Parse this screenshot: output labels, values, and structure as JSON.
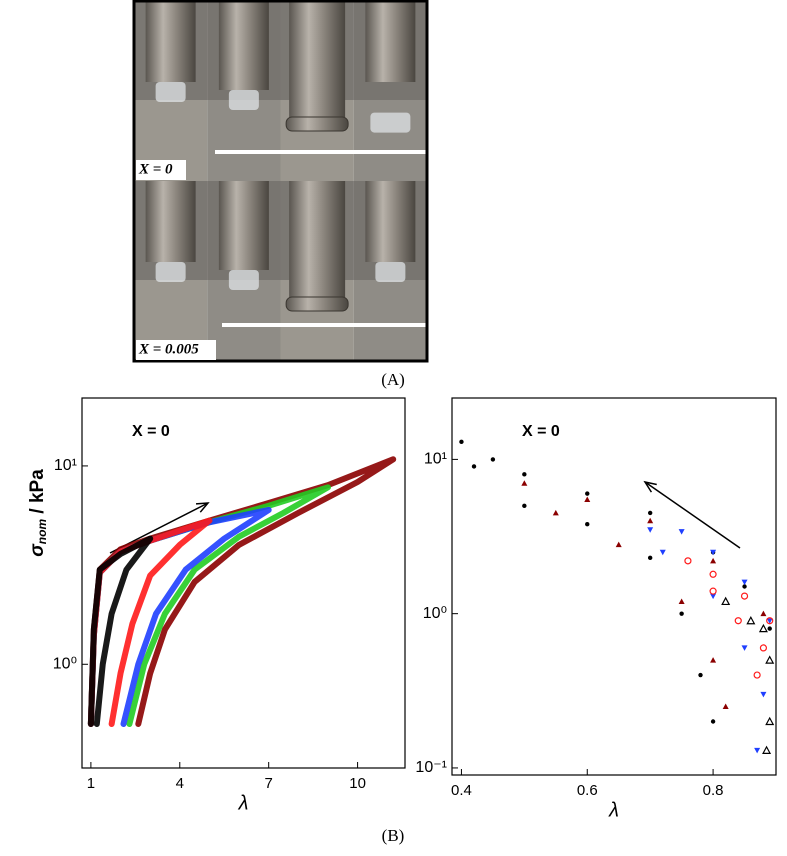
{
  "panel_a": {
    "row_labels": [
      "X = 0",
      "X = 0.005"
    ],
    "caption": "(A)"
  },
  "caption_b": "(B)",
  "chart_data": [
    {
      "type": "line",
      "annotation": "X = 0",
      "y_label": {
        "symbol": "σ",
        "subscript": "nom",
        "unit": " / kPa"
      },
      "x_label": "λ",
      "log_y": true,
      "xlim": [
        0.7,
        11.6
      ],
      "ylim": [
        0.3,
        22
      ],
      "xticks": [
        1,
        4,
        7,
        10
      ],
      "yticks": [
        {
          "value": 1,
          "label": "10⁰"
        },
        {
          "value": 10,
          "label": "10¹"
        }
      ],
      "series": [
        {
          "color": "#8b0000",
          "x": [
            1.0,
            1.1,
            1.3,
            2,
            3,
            5,
            7,
            9,
            11.2,
            10,
            8,
            6,
            4.5,
            3.5,
            3,
            2.6
          ],
          "values": [
            0.5,
            1.5,
            3,
            3.8,
            4.3,
            5.3,
            6.5,
            8,
            10.8,
            8.3,
            5.8,
            4,
            2.6,
            1.5,
            0.9,
            0.5
          ]
        },
        {
          "color": "#22cc22",
          "x": [
            1.0,
            1.1,
            1.3,
            2,
            3,
            5,
            7,
            9,
            7.5,
            6,
            4.5,
            3.5,
            2.8,
            2.3
          ],
          "values": [
            0.5,
            1.4,
            2.9,
            3.7,
            4.2,
            5.2,
            6.3,
            7.8,
            5.8,
            4.4,
            3,
            1.8,
            1,
            0.5
          ]
        },
        {
          "color": "#1f3fff",
          "x": [
            1.0,
            1.1,
            1.3,
            2,
            3,
            5,
            7,
            5.5,
            4.2,
            3.2,
            2.6,
            2.1
          ],
          "values": [
            0.5,
            1.4,
            2.9,
            3.7,
            4.2,
            5.2,
            6,
            4.3,
            3,
            1.8,
            1,
            0.5
          ]
        },
        {
          "color": "#ff1a1a",
          "x": [
            1.0,
            1.1,
            1.3,
            2,
            3,
            5,
            4,
            3,
            2.4,
            2,
            1.7
          ],
          "values": [
            0.5,
            1.4,
            2.9,
            3.7,
            4.2,
            5.3,
            4,
            2.8,
            1.6,
            0.9,
            0.5
          ]
        },
        {
          "color": "#000000",
          "x": [
            1.0,
            1.1,
            1.3,
            2,
            3,
            2.2,
            1.7,
            1.4,
            1.2
          ],
          "values": [
            0.5,
            1.5,
            3,
            3.6,
            4.3,
            3,
            1.8,
            1,
            0.5
          ]
        }
      ]
    },
    {
      "type": "scatter",
      "annotation": "X = 0",
      "x_label": "λ",
      "log_y": true,
      "xlim": [
        0.385,
        0.9
      ],
      "ylim": [
        0.09,
        25
      ],
      "xticks": [
        0.4,
        0.6,
        0.8
      ],
      "yticks": [
        {
          "value": 0.1,
          "label": "10⁻¹"
        },
        {
          "value": 1,
          "label": "10⁰"
        },
        {
          "value": 10,
          "label": "10¹"
        }
      ],
      "series": [
        {
          "color": "#000000",
          "marker": "dot",
          "x": [
            0.4,
            0.45,
            0.5,
            0.6,
            0.7,
            0.8,
            0.85,
            0.89,
            0.42,
            0.5,
            0.6,
            0.7,
            0.75,
            0.78,
            0.8
          ],
          "values": [
            13,
            10,
            8,
            6,
            4.5,
            2.5,
            1.5,
            0.8,
            9,
            5,
            3.8,
            2.3,
            1,
            0.4,
            0.2
          ]
        },
        {
          "color": "#8b0000",
          "marker": "triangle",
          "x": [
            0.5,
            0.6,
            0.7,
            0.8,
            0.88,
            0.55,
            0.65,
            0.75,
            0.8,
            0.82
          ],
          "values": [
            7,
            5.5,
            4,
            2.2,
            1,
            4.5,
            2.8,
            1.2,
            0.5,
            0.25
          ]
        },
        {
          "color": "#1f3fff",
          "marker": "down-triangle",
          "x": [
            0.7,
            0.75,
            0.8,
            0.85,
            0.89,
            0.72,
            0.8,
            0.85,
            0.88,
            0.87
          ],
          "values": [
            3.5,
            3.4,
            2.5,
            1.6,
            0.9,
            2.5,
            1.3,
            0.6,
            0.3,
            0.13
          ]
        },
        {
          "color": "#ff1a1a",
          "marker": "open-circle",
          "x": [
            0.76,
            0.8,
            0.85,
            0.89,
            0.88,
            0.84,
            0.8,
            0.87
          ],
          "values": [
            2.2,
            1.8,
            1.3,
            0.9,
            0.6,
            0.9,
            1.4,
            0.4
          ]
        },
        {
          "color": "#000000",
          "marker": "open-triangle",
          "x": [
            0.82,
            0.86,
            0.89,
            0.88,
            0.89,
            0.885
          ],
          "values": [
            1.2,
            0.9,
            0.5,
            0.8,
            0.2,
            0.13
          ]
        }
      ]
    }
  ]
}
